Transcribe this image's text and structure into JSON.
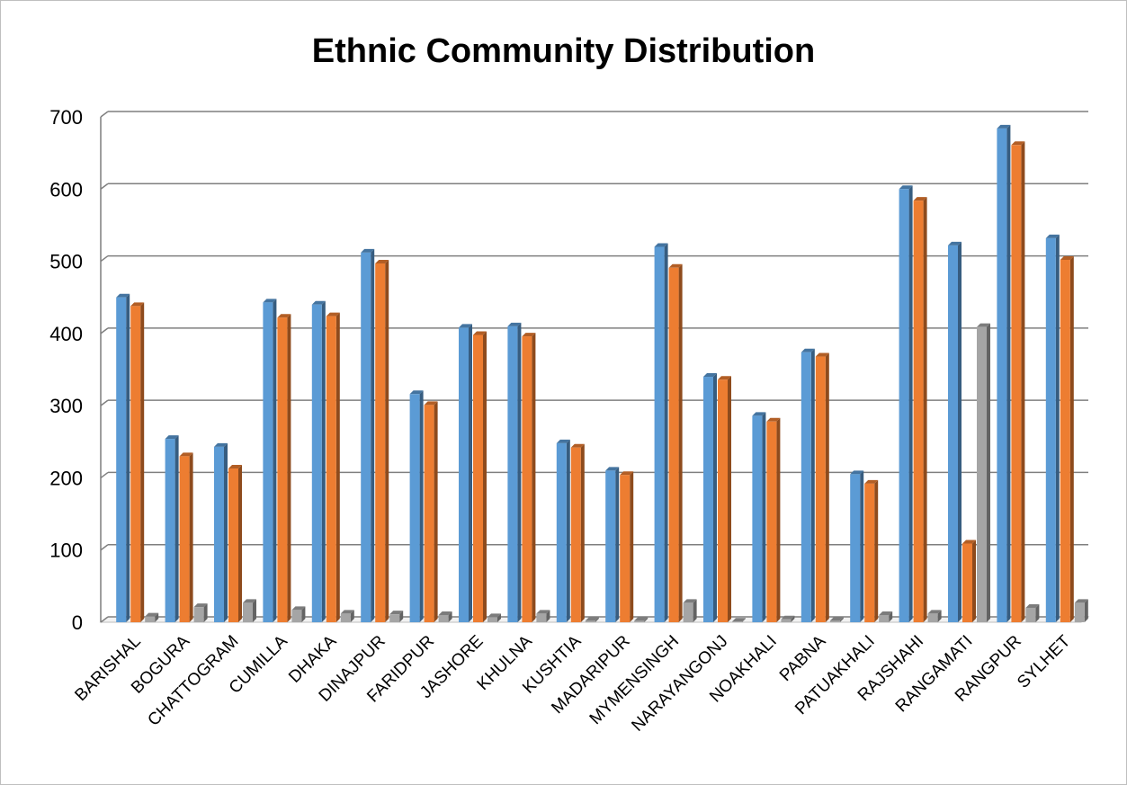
{
  "chart_data": {
    "type": "bar",
    "title": "Ethnic Community Distribution",
    "xlabel": "",
    "ylabel": "",
    "ylim": [
      0,
      700
    ],
    "yticks": [
      0,
      100,
      200,
      300,
      400,
      500,
      600,
      700
    ],
    "grid": true,
    "legend": "none",
    "colors": [
      "#5B9BD5",
      "#ED7D31",
      "#A5A5A5"
    ],
    "categories": [
      "BARISHAL",
      "BOGURA",
      "CHATTOGRAM",
      "CUMILLA",
      "DHAKA",
      "DINAJPUR",
      "FARIDPUR",
      "JASHORE",
      "KHULNA",
      "KUSHTIA",
      "MADARIPUR",
      "MYMENSINGH",
      "NARAYANGONJ",
      "NOAKHALI",
      "PABNA",
      "PATUAKHALI",
      "RAJSHAHI",
      "RANGAMATI",
      "RANGPUR",
      "SYLHET"
    ],
    "series": [
      {
        "values": [
          450,
          254,
          243,
          443,
          440,
          512,
          316,
          408,
          410,
          248,
          210,
          520,
          340,
          286,
          374,
          205,
          600,
          522,
          684,
          532
        ]
      },
      {
        "values": [
          438,
          230,
          213,
          422,
          424,
          497,
          301,
          398,
          396,
          242,
          204,
          491,
          336,
          278,
          368,
          192,
          584,
          109,
          661,
          502
        ]
      },
      {
        "values": [
          8,
          21,
          27,
          17,
          12,
          11,
          10,
          7,
          12,
          2,
          2,
          27,
          1,
          4,
          2,
          10,
          12,
          409,
          20,
          27
        ]
      }
    ]
  }
}
